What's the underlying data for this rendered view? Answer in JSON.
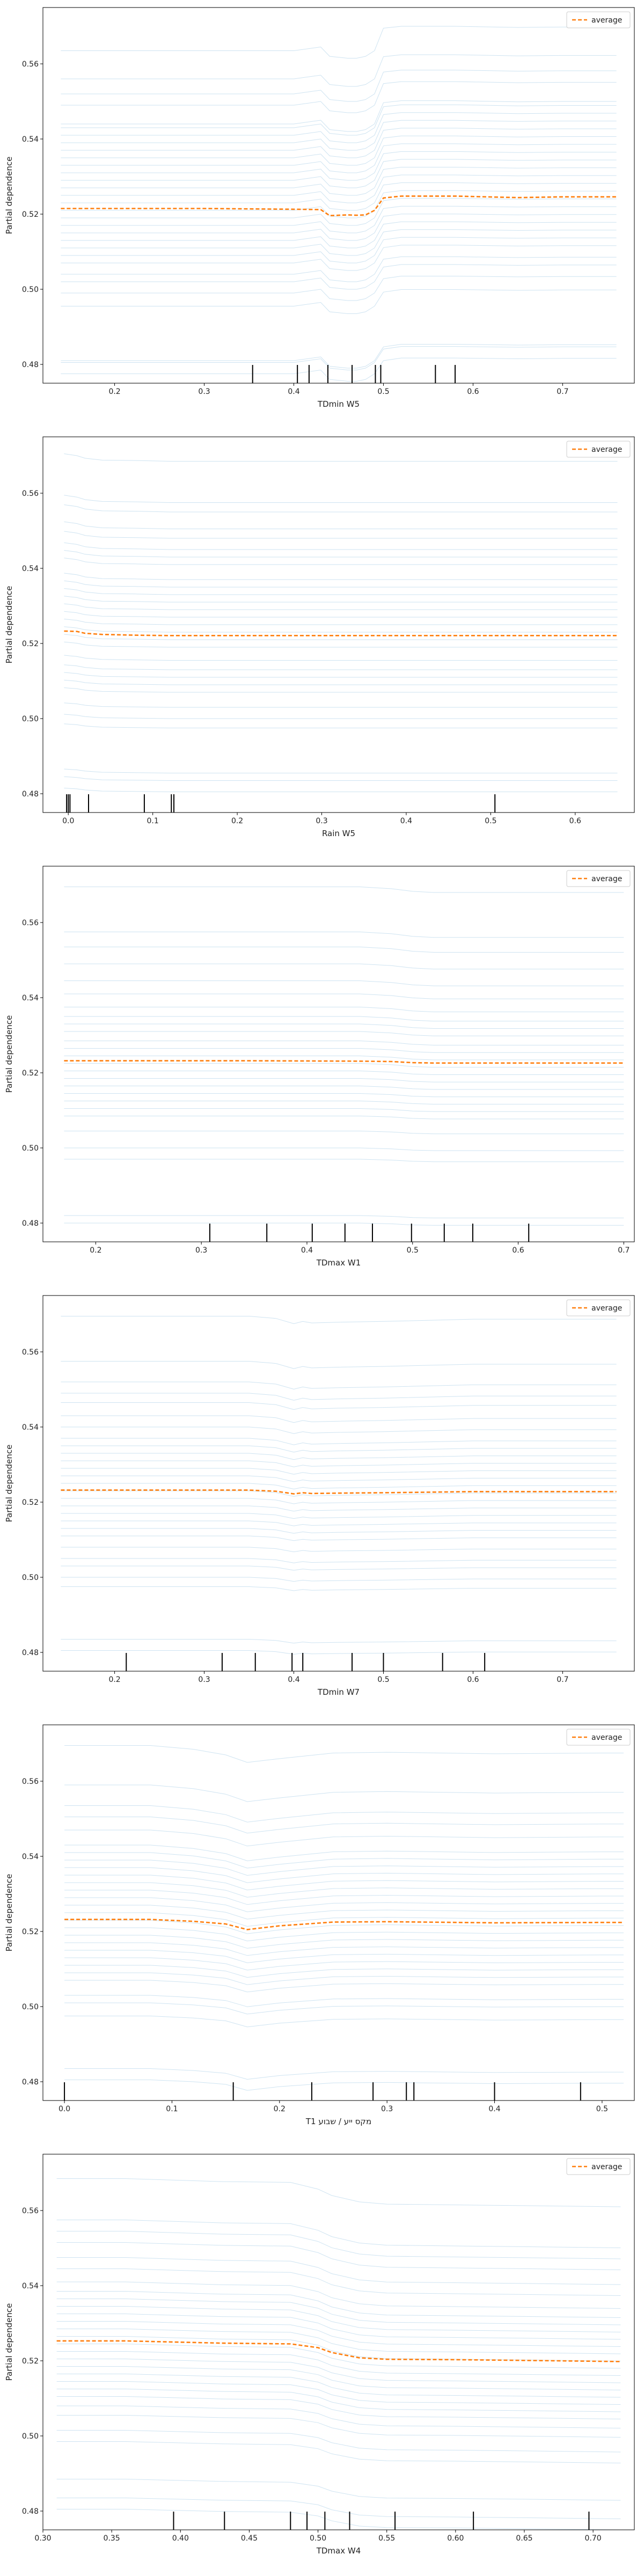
{
  "figure": {
    "colors": {
      "ice": "#a6cce6",
      "average": "#ff7f0e",
      "rug": "#000000",
      "axis": "#000000"
    }
  },
  "chart_data": [
    {
      "type": "line",
      "xlabel": "TDmin W5",
      "ylabel": "Partial dependence",
      "xlim": [
        0.12,
        0.78
      ],
      "ylim": [
        0.475,
        0.575
      ],
      "xticks": [
        "0.2",
        "0.3",
        "0.4",
        "0.5",
        "0.6",
        "0.7"
      ],
      "yticks": [
        "0.48",
        "0.50",
        "0.52",
        "0.54",
        "0.56"
      ],
      "legend": {
        "label": "average",
        "position": "top-right"
      },
      "average": {
        "name": "average",
        "x": [
          0.14,
          0.2,
          0.3,
          0.4,
          0.43,
          0.44,
          0.46,
          0.47,
          0.48,
          0.49,
          0.5,
          0.52,
          0.58,
          0.65,
          0.7,
          0.76
        ],
        "y": [
          0.5215,
          0.5215,
          0.5215,
          0.5213,
          0.5212,
          0.5196,
          0.5198,
          0.5197,
          0.5198,
          0.521,
          0.5243,
          0.5248,
          0.5248,
          0.5244,
          0.5246,
          0.5246
        ]
      },
      "ice": {
        "x": [
          0.14,
          0.2,
          0.3,
          0.4,
          0.43,
          0.44,
          0.46,
          0.47,
          0.48,
          0.49,
          0.5,
          0.52,
          0.58,
          0.65,
          0.7,
          0.76
        ],
        "base": [
          0.4775,
          0.4805,
          0.481,
          0.4955,
          0.499,
          0.502,
          0.504,
          0.507,
          0.509,
          0.511,
          0.513,
          0.515,
          0.517,
          0.519,
          0.521,
          0.523,
          0.525,
          0.527,
          0.529,
          0.531,
          0.533,
          0.535,
          0.537,
          0.539,
          0.541,
          0.543,
          0.544,
          0.549,
          0.552,
          0.556,
          0.5635
        ],
        "shape": [
          0,
          0,
          0,
          0,
          0.001,
          -0.0015,
          -0.002,
          -0.002,
          -0.0015,
          0,
          0.0035,
          0.0042,
          0.0042,
          0.004,
          0.0041,
          0.0041
        ],
        "shape_late": [
          0,
          0,
          0,
          0,
          0.001,
          -0.0015,
          -0.002,
          -0.002,
          -0.0015,
          0,
          0.006,
          0.0065,
          0.0065,
          0.0062,
          0.0063,
          0.0063
        ]
      },
      "rug": [
        0.354,
        0.404,
        0.417,
        0.438,
        0.465,
        0.491,
        0.497,
        0.558,
        0.58
      ]
    },
    {
      "type": "line",
      "xlabel": "Rain W5",
      "ylabel": "Partial dependence",
      "xlim": [
        -0.03,
        0.67
      ],
      "ylim": [
        0.475,
        0.575
      ],
      "xticks": [
        "0.0",
        "0.1",
        "0.2",
        "0.3",
        "0.4",
        "0.5",
        "0.6"
      ],
      "yticks": [
        "0.48",
        "0.50",
        "0.52",
        "0.54",
        "0.56"
      ],
      "legend": {
        "label": "average",
        "position": "top-right"
      },
      "average": {
        "name": "average",
        "x": [
          -0.005,
          0.01,
          0.02,
          0.04,
          0.08,
          0.12,
          0.2,
          0.3,
          0.4,
          0.5,
          0.6,
          0.65
        ],
        "y": [
          0.5233,
          0.5232,
          0.5227,
          0.5224,
          0.5222,
          0.5221,
          0.5221,
          0.5221,
          0.5221,
          0.5221,
          0.5221,
          0.5221
        ]
      },
      "ice": {
        "x": [
          -0.005,
          0.01,
          0.02,
          0.04,
          0.08,
          0.12,
          0.2,
          0.3,
          0.4,
          0.5,
          0.6,
          0.65
        ],
        "base": [
          0.4805,
          0.4835,
          0.4855,
          0.4975,
          0.5,
          0.503,
          0.507,
          0.509,
          0.511,
          0.513,
          0.5155,
          0.519,
          0.521,
          0.523,
          0.525,
          0.527,
          0.529,
          0.531,
          0.533,
          0.535,
          0.537,
          0.541,
          0.543,
          0.545,
          0.548,
          0.5505,
          0.555,
          0.5575,
          0.5685
        ],
        "shape": [
          0.001,
          0.0008,
          0.0005,
          0.0002,
          0.0001,
          0,
          0,
          0,
          0,
          0,
          0,
          0
        ],
        "shape_late": [
          0.002,
          0.0015,
          0.0008,
          0.0003,
          0.0002,
          0,
          0,
          0,
          0,
          0,
          0,
          0
        ]
      },
      "rug": [
        -0.002,
        0.0,
        0.002,
        0.024,
        0.09,
        0.122,
        0.125,
        0.505
      ]
    },
    {
      "type": "line",
      "xlabel": "TDmax W1",
      "ylabel": "Partial dependence",
      "xlim": [
        0.15,
        0.71
      ],
      "ylim": [
        0.475,
        0.575
      ],
      "xticks": [
        "0.2",
        "0.3",
        "0.4",
        "0.5",
        "0.6",
        "0.7"
      ],
      "yticks": [
        "0.48",
        "0.50",
        "0.52",
        "0.54",
        "0.56"
      ],
      "legend": {
        "label": "average",
        "position": "top-right"
      },
      "average": {
        "name": "average",
        "x": [
          0.17,
          0.25,
          0.35,
          0.45,
          0.48,
          0.5,
          0.52,
          0.55,
          0.6,
          0.7
        ],
        "y": [
          0.5232,
          0.5232,
          0.5232,
          0.5231,
          0.523,
          0.5227,
          0.5226,
          0.5226,
          0.5226,
          0.5226
        ]
      },
      "ice": {
        "x": [
          0.17,
          0.25,
          0.35,
          0.45,
          0.48,
          0.5,
          0.52,
          0.55,
          0.6,
          0.7
        ],
        "base": [
          0.48,
          0.482,
          0.497,
          0.5,
          0.5045,
          0.5085,
          0.5105,
          0.5125,
          0.5145,
          0.5165,
          0.5185,
          0.5205,
          0.5225,
          0.5245,
          0.5265,
          0.5285,
          0.531,
          0.533,
          0.535,
          0.5375,
          0.541,
          0.5445,
          0.549,
          0.5535,
          0.5575,
          0.5695
        ],
        "shape": [
          0,
          0,
          0,
          0,
          -0.0002,
          -0.0005,
          -0.0006,
          -0.0006,
          -0.0006,
          -0.0006
        ],
        "shape_late": [
          0,
          0,
          0,
          0,
          -0.0005,
          -0.0012,
          -0.0015,
          -0.0015,
          -0.0015,
          -0.0015
        ]
      },
      "rug": [
        0.308,
        0.362,
        0.405,
        0.436,
        0.462,
        0.499,
        0.53,
        0.557,
        0.61
      ]
    },
    {
      "type": "line",
      "xlabel": "TDmin W7",
      "ylabel": "Partial dependence",
      "xlim": [
        0.12,
        0.78
      ],
      "ylim": [
        0.475,
        0.575
      ],
      "xticks": [
        "0.2",
        "0.3",
        "0.4",
        "0.5",
        "0.6",
        "0.7"
      ],
      "yticks": [
        "0.48",
        "0.50",
        "0.52",
        "0.54",
        "0.56"
      ],
      "legend": {
        "label": "average",
        "position": "top-right"
      },
      "average": {
        "name": "average",
        "x": [
          0.14,
          0.25,
          0.35,
          0.38,
          0.4,
          0.41,
          0.42,
          0.45,
          0.5,
          0.6,
          0.7,
          0.76
        ],
        "y": [
          0.5232,
          0.5232,
          0.5232,
          0.5229,
          0.5222,
          0.5225,
          0.5223,
          0.5224,
          0.5225,
          0.5228,
          0.5228,
          0.5228
        ]
      },
      "ice": {
        "x": [
          0.14,
          0.25,
          0.35,
          0.38,
          0.4,
          0.41,
          0.42,
          0.45,
          0.5,
          0.6,
          0.7,
          0.76
        ],
        "base": [
          0.4805,
          0.4835,
          0.4975,
          0.5,
          0.503,
          0.505,
          0.508,
          0.511,
          0.513,
          0.515,
          0.517,
          0.519,
          0.521,
          0.523,
          0.525,
          0.527,
          0.529,
          0.531,
          0.533,
          0.535,
          0.537,
          0.54,
          0.543,
          0.5465,
          0.549,
          0.552,
          0.5575,
          0.5695
        ],
        "shape": [
          0,
          0,
          0,
          -0.0003,
          -0.001,
          -0.0007,
          -0.0009,
          -0.0008,
          -0.0007,
          -0.0004,
          -0.0004,
          -0.0004
        ],
        "shape_late": [
          0,
          0,
          0,
          -0.0006,
          -0.002,
          -0.0014,
          -0.0018,
          -0.0016,
          -0.0014,
          -0.0008,
          -0.0008,
          -0.0008
        ]
      },
      "rug": [
        0.213,
        0.32,
        0.357,
        0.398,
        0.41,
        0.465,
        0.5,
        0.566,
        0.613
      ]
    },
    {
      "type": "line",
      "xlabel": "Tמקס ייע / שבוע 1",
      "ylabel": "Partial dependence",
      "xlim": [
        -0.02,
        0.53
      ],
      "ylim": [
        0.475,
        0.575
      ],
      "xticks": [
        "0.0",
        "0.1",
        "0.2",
        "0.3",
        "0.4",
        "0.5"
      ],
      "yticks": [
        "0.48",
        "0.50",
        "0.52",
        "0.54",
        "0.56"
      ],
      "legend": {
        "label": "average",
        "position": "top-right"
      },
      "average": {
        "name": "average",
        "x": [
          0.0,
          0.08,
          0.12,
          0.15,
          0.17,
          0.2,
          0.25,
          0.3,
          0.4,
          0.5,
          0.52
        ],
        "y": [
          0.5232,
          0.5232,
          0.5227,
          0.522,
          0.5205,
          0.5215,
          0.5225,
          0.5226,
          0.5223,
          0.5224,
          0.5224
        ]
      },
      "ice": {
        "x": [
          0.0,
          0.08,
          0.12,
          0.15,
          0.17,
          0.2,
          0.25,
          0.3,
          0.4,
          0.5,
          0.52
        ],
        "base": [
          0.4805,
          0.4835,
          0.4975,
          0.501,
          0.503,
          0.507,
          0.509,
          0.511,
          0.513,
          0.515,
          0.517,
          0.519,
          0.521,
          0.523,
          0.525,
          0.527,
          0.529,
          0.531,
          0.533,
          0.535,
          0.537,
          0.539,
          0.541,
          0.543,
          0.547,
          0.5505,
          0.5535,
          0.559,
          0.5695
        ],
        "shape": [
          0,
          0,
          -0.0005,
          -0.0012,
          -0.0028,
          -0.0018,
          -0.0008,
          -0.0007,
          -0.001,
          -0.0009,
          -0.0009
        ],
        "shape_late": [
          0,
          0,
          -0.001,
          -0.0025,
          -0.0045,
          -0.0035,
          -0.002,
          -0.0018,
          -0.0022,
          -0.002,
          -0.002
        ]
      },
      "rug": [
        0.0,
        0.157,
        0.23,
        0.287,
        0.318,
        0.325,
        0.4,
        0.48
      ]
    },
    {
      "type": "line",
      "xlabel": "TDmax W4",
      "ylabel": "Partial dependence",
      "xlim": [
        0.3,
        0.73
      ],
      "ylim": [
        0.475,
        0.575
      ],
      "xticks": [
        "0.30",
        "0.35",
        "0.40",
        "0.45",
        "0.50",
        "0.55",
        "0.60",
        "0.65",
        "0.70"
      ],
      "yticks": [
        "0.48",
        "0.50",
        "0.52",
        "0.54",
        "0.56"
      ],
      "legend": {
        "label": "average",
        "position": "top-right"
      },
      "average": {
        "name": "average",
        "x": [
          0.31,
          0.36,
          0.43,
          0.48,
          0.5,
          0.51,
          0.53,
          0.55,
          0.6,
          0.65,
          0.72
        ],
        "y": [
          0.5253,
          0.5253,
          0.5247,
          0.5245,
          0.5235,
          0.5222,
          0.5208,
          0.5204,
          0.5203,
          0.5201,
          0.5198
        ]
      },
      "ice": {
        "x": [
          0.31,
          0.36,
          0.43,
          0.48,
          0.5,
          0.51,
          0.53,
          0.55,
          0.6,
          0.65,
          0.72
        ],
        "base": [
          0.4805,
          0.4835,
          0.4885,
          0.4985,
          0.5015,
          0.5055,
          0.508,
          0.5105,
          0.5125,
          0.5145,
          0.5165,
          0.5185,
          0.5205,
          0.5225,
          0.5245,
          0.5265,
          0.5285,
          0.5305,
          0.5325,
          0.5345,
          0.5365,
          0.5385,
          0.541,
          0.5445,
          0.5475,
          0.5515,
          0.5545,
          0.5575,
          0.5685
        ],
        "shape": [
          0,
          0,
          -0.0006,
          -0.0008,
          -0.0018,
          -0.0031,
          -0.0045,
          -0.0049,
          -0.005,
          -0.0052,
          -0.0055
        ],
        "shape_late": [
          0,
          0,
          -0.0008,
          -0.001,
          -0.0028,
          -0.0045,
          -0.0062,
          -0.0068,
          -0.007,
          -0.0072,
          -0.0075
        ]
      },
      "rug": [
        0.395,
        0.432,
        0.48,
        0.492,
        0.505,
        0.523,
        0.556,
        0.613,
        0.697
      ]
    }
  ]
}
